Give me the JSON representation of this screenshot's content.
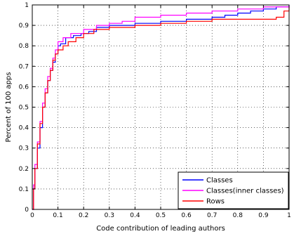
{
  "chart_data": {
    "type": "line",
    "xlabel": "Code contribution of leading authors",
    "ylabel": "Percent of 100 apps",
    "xlim": [
      0,
      1
    ],
    "ylim": [
      0,
      1
    ],
    "x_ticks": [
      "0",
      "0.1",
      "0.2",
      "0.3",
      "0.4",
      "0.5",
      "0.6",
      "0.7",
      "0.8",
      "0.9",
      "1"
    ],
    "y_ticks": [
      "0",
      "0.1",
      "0.2",
      "0.3",
      "0.4",
      "0.5",
      "0.6",
      "0.7",
      "0.8",
      "0.9",
      "1"
    ],
    "grid": true,
    "grid_style": "dotted",
    "legend_position": "bottom-right",
    "series": [
      {
        "name": "Classes",
        "color": "#0000ff",
        "points": [
          [
            0,
            0
          ],
          [
            0.005,
            0.1
          ],
          [
            0.01,
            0.2
          ],
          [
            0.02,
            0.3
          ],
          [
            0.03,
            0.4
          ],
          [
            0.04,
            0.5
          ],
          [
            0.05,
            0.57
          ],
          [
            0.06,
            0.63
          ],
          [
            0.07,
            0.68
          ],
          [
            0.08,
            0.72
          ],
          [
            0.09,
            0.76
          ],
          [
            0.1,
            0.8
          ],
          [
            0.11,
            0.81
          ],
          [
            0.13,
            0.84
          ],
          [
            0.16,
            0.85
          ],
          [
            0.19,
            0.86
          ],
          [
            0.22,
            0.87
          ],
          [
            0.25,
            0.89
          ],
          [
            0.3,
            0.9
          ],
          [
            0.4,
            0.91
          ],
          [
            0.5,
            0.92
          ],
          [
            0.6,
            0.93
          ],
          [
            0.7,
            0.94
          ],
          [
            0.75,
            0.95
          ],
          [
            0.8,
            0.96
          ],
          [
            0.85,
            0.97
          ],
          [
            0.9,
            0.98
          ],
          [
            0.95,
            0.99
          ],
          [
            1,
            1
          ]
        ]
      },
      {
        "name": "Classes(inner classes)",
        "color": "#ff00ff",
        "points": [
          [
            0,
            0
          ],
          [
            0.005,
            0.12
          ],
          [
            0.01,
            0.22
          ],
          [
            0.02,
            0.33
          ],
          [
            0.03,
            0.43
          ],
          [
            0.04,
            0.52
          ],
          [
            0.05,
            0.59
          ],
          [
            0.06,
            0.65
          ],
          [
            0.07,
            0.69
          ],
          [
            0.08,
            0.74
          ],
          [
            0.09,
            0.78
          ],
          [
            0.1,
            0.82
          ],
          [
            0.12,
            0.84
          ],
          [
            0.15,
            0.86
          ],
          [
            0.2,
            0.88
          ],
          [
            0.25,
            0.9
          ],
          [
            0.3,
            0.91
          ],
          [
            0.35,
            0.92
          ],
          [
            0.4,
            0.94
          ],
          [
            0.5,
            0.95
          ],
          [
            0.6,
            0.96
          ],
          [
            0.7,
            0.97
          ],
          [
            0.8,
            0.98
          ],
          [
            0.9,
            0.99
          ],
          [
            1,
            1
          ]
        ]
      },
      {
        "name": "Rows",
        "color": "#ff0000",
        "points": [
          [
            0,
            0
          ],
          [
            0.005,
            0.1
          ],
          [
            0.01,
            0.2
          ],
          [
            0.02,
            0.32
          ],
          [
            0.03,
            0.42
          ],
          [
            0.04,
            0.5
          ],
          [
            0.05,
            0.57
          ],
          [
            0.06,
            0.63
          ],
          [
            0.07,
            0.68
          ],
          [
            0.08,
            0.73
          ],
          [
            0.09,
            0.76
          ],
          [
            0.1,
            0.78
          ],
          [
            0.12,
            0.8
          ],
          [
            0.14,
            0.82
          ],
          [
            0.17,
            0.84
          ],
          [
            0.2,
            0.86
          ],
          [
            0.24,
            0.88
          ],
          [
            0.3,
            0.89
          ],
          [
            0.4,
            0.9
          ],
          [
            0.5,
            0.91
          ],
          [
            0.6,
            0.92
          ],
          [
            0.7,
            0.93
          ],
          [
            0.8,
            0.93
          ],
          [
            0.9,
            0.93
          ],
          [
            0.95,
            0.94
          ],
          [
            0.98,
            0.97
          ],
          [
            1,
            0.99
          ]
        ]
      }
    ]
  }
}
